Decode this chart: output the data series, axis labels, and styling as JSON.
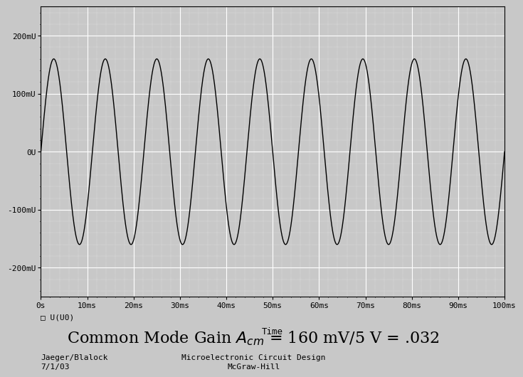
{
  "xlabel": "Time",
  "xlim": [
    0,
    0.1
  ],
  "ylim": [
    -0.25,
    0.25
  ],
  "yticks": [
    -0.2,
    -0.1,
    0.0,
    0.1,
    0.2
  ],
  "ytick_labels": [
    "-200mU",
    "-100mU",
    "0U",
    "100mU",
    "200mU"
  ],
  "xticks": [
    0,
    0.01,
    0.02,
    0.03,
    0.04,
    0.05,
    0.06,
    0.07,
    0.08,
    0.09,
    0.1
  ],
  "xtick_labels": [
    "0s",
    "10ms",
    "20ms",
    "30ms",
    "40ms",
    "50ms",
    "60ms",
    "70ms",
    "80ms",
    "90ms",
    "100ms"
  ],
  "signal_amplitude": 0.16,
  "signal_frequency": 90,
  "line_color": "#000000",
  "bg_color": "#c8c8c8",
  "grid_major_color": "#ffffff",
  "grid_minor_color": "#ffffff",
  "fig_bg_color": "#c8c8c8",
  "legend_marker": "□",
  "legend_label": "U(U0)",
  "subtitle_left1": "Jaeger/Blalock",
  "subtitle_left2": "7/1/03",
  "subtitle_center1": "Microelectronic Circuit Design",
  "subtitle_center2": "McGraw-Hill",
  "title_fontsize": 16,
  "subtitle_fontsize": 8,
  "tick_fontsize": 8
}
